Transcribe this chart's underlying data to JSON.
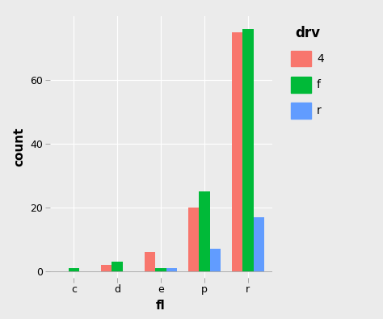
{
  "categories": [
    "c",
    "d",
    "e",
    "p",
    "r"
  ],
  "series": {
    "4": [
      0,
      2,
      6,
      20,
      75
    ],
    "f": [
      1,
      3,
      1,
      25,
      76
    ],
    "r": [
      0,
      0,
      1,
      7,
      17
    ]
  },
  "colors": {
    "4": "#F8766D",
    "f": "#00BA38",
    "r": "#619CFF"
  },
  "drv_order": [
    "4",
    "f",
    "r"
  ],
  "xlabel": "fl",
  "ylabel": "count",
  "legend_title": "drv",
  "ylim": [
    -2,
    80
  ],
  "yticks": [
    0,
    20,
    40,
    60
  ],
  "ytick_labels": [
    "0 -",
    "20 -",
    "40 -",
    "60 -"
  ],
  "panel_background": "#EBEBEB",
  "plot_background": "#EBEBEB",
  "grid_color": "#FFFFFF",
  "bar_width": 0.25,
  "axis_label_fontsize": 11,
  "tick_fontsize": 9,
  "legend_title_fontsize": 12,
  "legend_fontsize": 10
}
